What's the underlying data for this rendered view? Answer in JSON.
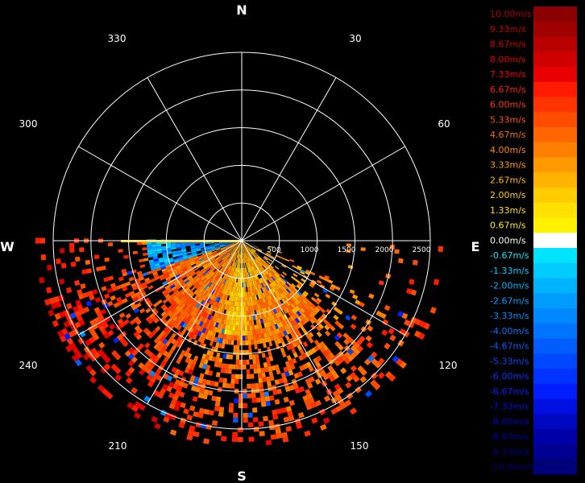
{
  "chart_data": {
    "type": "heatmap",
    "subtype": "polar-radar-velocity",
    "title": "",
    "cardinals": {
      "north": "N",
      "south": "S",
      "east": "E",
      "west": "W"
    },
    "angle_ticks": [
      {
        "deg": 30,
        "label": "30"
      },
      {
        "deg": 60,
        "label": "60"
      },
      {
        "deg": 120,
        "label": "120"
      },
      {
        "deg": 150,
        "label": "150"
      },
      {
        "deg": 210,
        "label": "210"
      },
      {
        "deg": 240,
        "label": "240"
      },
      {
        "deg": 300,
        "label": "300"
      },
      {
        "deg": 330,
        "label": "330"
      }
    ],
    "range_ticks": [
      "500",
      "1000",
      "1500",
      "2000",
      "2500"
    ],
    "range_max": 2500,
    "scan_sector_deg": [
      90,
      270
    ],
    "dominant_values": {
      "southwest_sector_m_s": 6.0,
      "west_near_range_m_s": -3.33,
      "south_core_m_s": 3.33
    },
    "legend": [
      {
        "label": "10.00m/s",
        "color": "#8b0000",
        "text_color": "#b00000"
      },
      {
        "label": "9.33m/s",
        "color": "#a00000",
        "text_color": "#c00000"
      },
      {
        "label": "8.67m/s",
        "color": "#b80000",
        "text_color": "#d00000"
      },
      {
        "label": "8.00m/s",
        "color": "#d00000",
        "text_color": "#e00000"
      },
      {
        "label": "7.33m/s",
        "color": "#e80000",
        "text_color": "#f00000"
      },
      {
        "label": "6.67m/s",
        "color": "#ff1a00",
        "text_color": "#ff2000"
      },
      {
        "label": "6.00m/s",
        "color": "#ff3300",
        "text_color": "#ff3a00"
      },
      {
        "label": "5.33m/s",
        "color": "#ff4d00",
        "text_color": "#ff5000"
      },
      {
        "label": "4.67m/s",
        "color": "#ff6600",
        "text_color": "#ff6a00"
      },
      {
        "label": "4.00m/s",
        "color": "#ff8000",
        "text_color": "#ff8a00"
      },
      {
        "label": "3.33m/s",
        "color": "#ff9900",
        "text_color": "#ffa000"
      },
      {
        "label": "2.67m/s",
        "color": "#ffb300",
        "text_color": "#ffb800"
      },
      {
        "label": "2.00m/s",
        "color": "#ffcc00",
        "text_color": "#ffcc00"
      },
      {
        "label": "1.33m/s",
        "color": "#ffe000",
        "text_color": "#ffe000"
      },
      {
        "label": "0.67m/s",
        "color": "#fff200",
        "text_color": "#fff200"
      },
      {
        "label": "0.00m/s",
        "color": "#ffffff",
        "text_color": "#ffffff"
      },
      {
        "label": "-0.67m/s",
        "color": "#00e5ff",
        "text_color": "#00e5ff"
      },
      {
        "label": "-1.33m/s",
        "color": "#00ccff",
        "text_color": "#00ccff"
      },
      {
        "label": "-2.00m/s",
        "color": "#00b3ff",
        "text_color": "#00b3ff"
      },
      {
        "label": "-2.67m/s",
        "color": "#009dff",
        "text_color": "#009dff"
      },
      {
        "label": "-3.33m/s",
        "color": "#0088ff",
        "text_color": "#0088ff"
      },
      {
        "label": "-4.00m/s",
        "color": "#0073ff",
        "text_color": "#0073ff"
      },
      {
        "label": "-4.67m/s",
        "color": "#005eff",
        "text_color": "#005eff"
      },
      {
        "label": "-5.33m/s",
        "color": "#0048ff",
        "text_color": "#0048ff"
      },
      {
        "label": "-6.00m/s",
        "color": "#0033ff",
        "text_color": "#0033ff"
      },
      {
        "label": "-6.67m/s",
        "color": "#001eff",
        "text_color": "#001eff"
      },
      {
        "label": "-7.33m/s",
        "color": "#0010e0",
        "text_color": "#0010e0"
      },
      {
        "label": "-8.00m/s",
        "color": "#0008c0",
        "text_color": "#0008c0"
      },
      {
        "label": "-8.67m/s",
        "color": "#0000a8",
        "text_color": "#0000a8"
      },
      {
        "label": "-9.33m/s",
        "color": "#000090",
        "text_color": "#000090"
      },
      {
        "label": "-10.00m/s",
        "color": "#000078",
        "text_color": "#000078"
      }
    ]
  }
}
